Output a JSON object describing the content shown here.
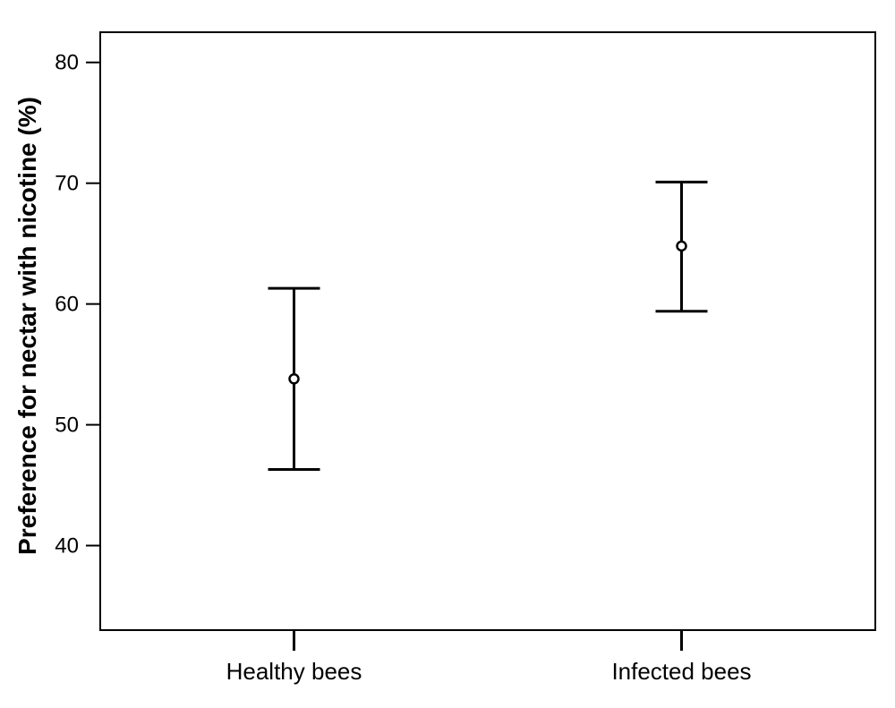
{
  "chart_data": {
    "type": "errorbar",
    "title": "",
    "xlabel": "",
    "ylabel": "Preference for nectar with nicotine (%)",
    "ylim": [
      33,
      82.5
    ],
    "yticks": [
      40,
      50,
      60,
      70,
      80
    ],
    "yticklabels": [
      "40",
      "50",
      "60",
      "70",
      "80"
    ],
    "categories": [
      "Healthy bees",
      "Infected bees"
    ],
    "means": [
      53.8,
      64.8
    ],
    "lower": [
      46.3,
      59.4
    ],
    "upper": [
      61.3,
      70.1
    ],
    "grid": false,
    "colors": {
      "ink": "#000000",
      "background": "#ffffff"
    }
  }
}
